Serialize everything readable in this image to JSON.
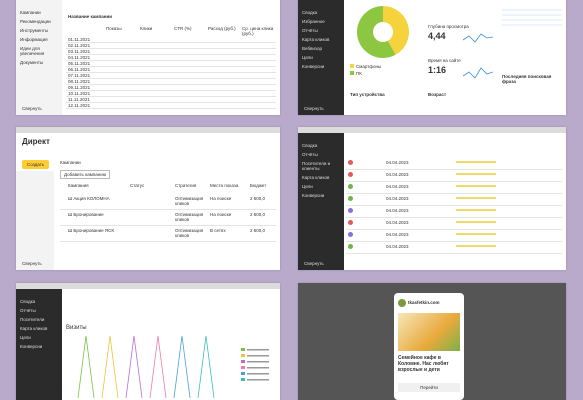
{
  "tile1": {
    "menu": [
      "Кампании",
      "Рекомендации",
      "Инструменты",
      "Информация",
      "Идеи для увеличения",
      "Документы"
    ],
    "collapse": "Свернуть",
    "heading": "Название кампании",
    "columns": [
      "Показы",
      "Клики",
      "CTR (%)",
      "Расход (руб.)",
      "Ср. цена клика (руб.)"
    ],
    "rows": [
      "01.11.2021",
      "02.11.2021",
      "03.11.2021",
      "04.11.2021",
      "05.11.2021",
      "06.11.2021",
      "07.11.2021",
      "08.11.2021",
      "09.11.2021",
      "10.11.2021",
      "11.11.2021",
      "12.11.2021"
    ]
  },
  "tile2": {
    "menu": [
      "Сводка",
      "Избранное",
      "Отчёты",
      "Карта кликов",
      "Вебвизор",
      "Цели",
      "Конверсии"
    ],
    "collapse": "Свернуть",
    "pie": [
      {
        "name": "Смартфоны",
        "color": "#f4d33c",
        "value": 42
      },
      {
        "name": "ПК",
        "color": "#8dc641",
        "value": 58
      }
    ],
    "device": "Тип устройства",
    "depth_label": "Глубина просмотра",
    "depth": "4,44",
    "time_label": "Время на сайте",
    "time": "1:16",
    "age": "Возраст",
    "phrase": "Последняя поисковая фраза"
  },
  "tile3": {
    "tab": "Кампании",
    "logo": "Директ",
    "create": "Создать",
    "add": "Добавить кампанию",
    "columns": [
      "Кампания",
      "Статус",
      "Стратегия",
      "Места показа",
      "Бюджет"
    ],
    "rows": [
      [
        "Ш Акция КОЛОМНА",
        "Оптимизация кликов",
        "На поиске",
        "2 500,0"
      ],
      [
        "Ш Бронирование",
        "Оптимизация кликов",
        "На поиске",
        "2 500,0"
      ],
      [
        "Ш Бронирование ЯСК",
        "Оптимизация кликов",
        "В сетях",
        "2 500,0"
      ]
    ],
    "collapse": "Свернуть"
  },
  "tile4": {
    "menu": [
      "Сводка",
      "Отчёты",
      "Посетители и клиенты",
      "Карта кликов",
      "Цели",
      "Конверсии"
    ],
    "dates": [
      "04.04.2023",
      "04.04.2023",
      "04.04.2023",
      "04.04.2023",
      "04.04.2023",
      "04.04.2023",
      "04.04.2023",
      "04.04.2023"
    ],
    "colors": [
      "#e25a5a",
      "#e25a5a",
      "#6fb34b",
      "#6fb34b",
      "#8a6fd8",
      "#e25a5a",
      "#8a6fd8",
      "#6fb34b"
    ],
    "collapse": "Свернуть"
  },
  "tile5": {
    "menu": [
      "Сводка",
      "Отчёты",
      "Посетители",
      "Карта кликов",
      "Цели",
      "Конверсии"
    ],
    "title": "Визиты",
    "legend_colors": [
      "#7ac142",
      "#e8c43a",
      "#b46fd6",
      "#f07aa6",
      "#4a9de0",
      "#3fbfae"
    ]
  },
  "tile6": {
    "site": "tkasfetkin.com",
    "headline": "Семейное кафе в Коломне. Нас любят взрослые и дети",
    "button": "Перейти"
  }
}
